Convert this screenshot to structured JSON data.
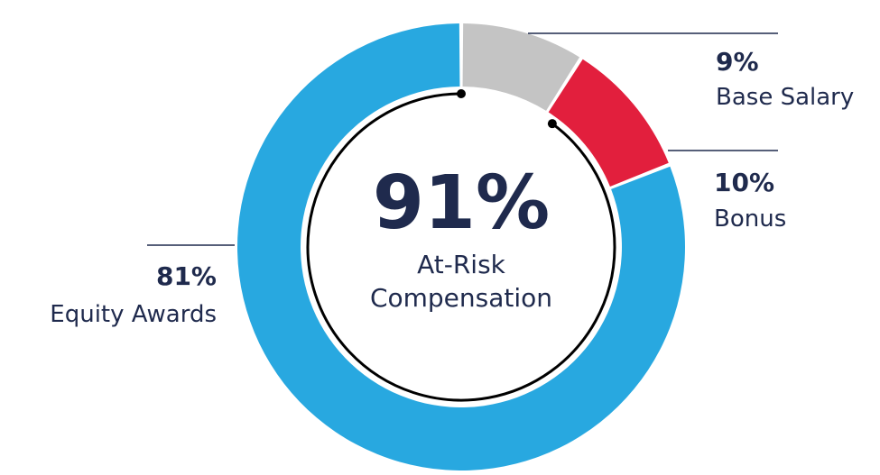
{
  "chart_data": {
    "type": "pie",
    "categories": [
      "Base Salary",
      "Bonus",
      "Equity Awards"
    ],
    "values": [
      9,
      10,
      81
    ],
    "value_labels": [
      "9%",
      "10%",
      "81%"
    ],
    "colors": [
      "#c4c4c4",
      "#e21f3d",
      "#28a8e0"
    ],
    "center": {
      "value": "91%",
      "label_line1": "At-Risk",
      "label_line2": "Compensation"
    }
  }
}
